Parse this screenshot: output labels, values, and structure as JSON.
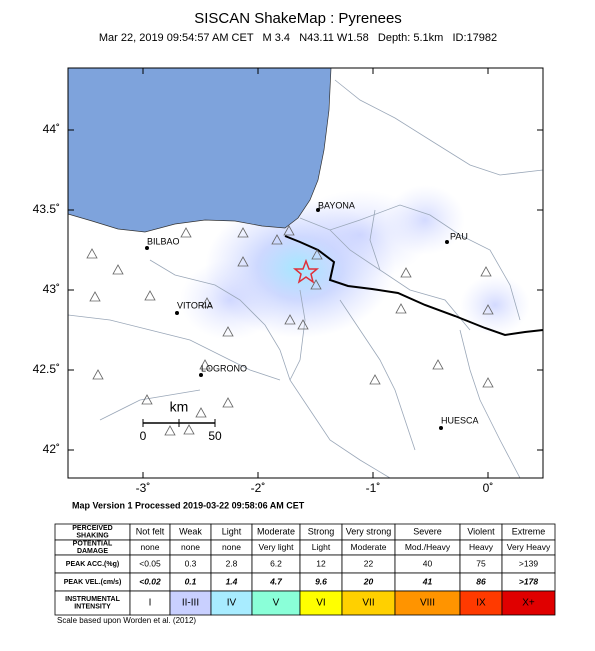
{
  "title": "SISCAN ShakeMap : Pyrenees",
  "subtitle": "Mar 22, 2019 09:54:57 AM CET   M 3.4   N43.11 W1.58   Depth: 5.1km   ID:17982",
  "map": {
    "lat_ticks": [
      {
        "value": 44,
        "label": "44˚"
      },
      {
        "value": 43.5,
        "label": "43.5˚"
      },
      {
        "value": 43,
        "label": "43˚"
      },
      {
        "value": 42.5,
        "label": "42.5˚"
      },
      {
        "value": 42,
        "label": "42˚"
      }
    ],
    "lon_ticks": [
      {
        "value": -3,
        "label": "-3˚"
      },
      {
        "value": -2,
        "label": "-2˚"
      },
      {
        "value": -1,
        "label": "-1˚"
      },
      {
        "value": 0,
        "label": "0˚"
      }
    ],
    "cities": [
      "BAYONA",
      "PAU",
      "BILBAO",
      "VITORIA",
      "LOGRONO",
      "HUESCA"
    ],
    "scale": {
      "unit": "km",
      "start": "0",
      "end": "50"
    }
  },
  "processed": "Map Version 1 Processed 2019-03-22 09:58:06 AM CET",
  "table": {
    "rows": [
      {
        "label": [
          "PERCEIVED",
          "SHAKING"
        ],
        "cells": [
          "Not felt",
          "Weak",
          "Light",
          "Moderate",
          "Strong",
          "Very strong",
          "Severe",
          "Violent",
          "Extreme"
        ]
      },
      {
        "label": [
          "POTENTIAL",
          "DAMAGE"
        ],
        "cells": [
          "none",
          "none",
          "none",
          "Very light",
          "Light",
          "Moderate",
          "Mod./Heavy",
          "Heavy",
          "Very Heavy"
        ]
      },
      {
        "label": [
          "PEAK ACC.(%g)"
        ],
        "cells": [
          "<0.05",
          "0.3",
          "2.8",
          "6.2",
          "12",
          "22",
          "40",
          "75",
          ">139"
        ]
      },
      {
        "label": [
          "PEAK VEL.(cm/s)"
        ],
        "cells": [
          "<0.02",
          "0.1",
          "1.4",
          "4.7",
          "9.6",
          "20",
          "41",
          "86",
          ">178"
        ]
      },
      {
        "label": [
          "INSTRUMENTAL",
          "INTENSITY"
        ],
        "cells": [
          "I",
          "II-III",
          "IV",
          "V",
          "VI",
          "VII",
          "VIII",
          "IX",
          "X+"
        ]
      }
    ]
  },
  "footnote": "Scale based upon Worden et al. (2012)"
}
